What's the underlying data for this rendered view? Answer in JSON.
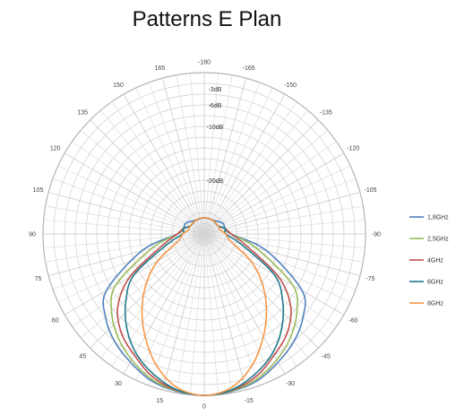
{
  "chart_data": {
    "type": "polar-line",
    "title": "Patterns E Plan",
    "angle_labels": [
      {
        "angle": 0,
        "label": "0"
      },
      {
        "angle": 15,
        "label": "15"
      },
      {
        "angle": 30,
        "label": "30"
      },
      {
        "angle": 45,
        "label": "45"
      },
      {
        "angle": 60,
        "label": "60"
      },
      {
        "angle": 75,
        "label": "75"
      },
      {
        "angle": 90,
        "label": "90"
      },
      {
        "angle": 105,
        "label": "105"
      },
      {
        "angle": 120,
        "label": "120"
      },
      {
        "angle": 135,
        "label": "135"
      },
      {
        "angle": 150,
        "label": "150"
      },
      {
        "angle": 165,
        "label": "165"
      },
      {
        "angle": 180,
        "label": "-180"
      },
      {
        "angle": -165,
        "label": "-165"
      },
      {
        "angle": -150,
        "label": "-150"
      },
      {
        "angle": -135,
        "label": "-135"
      },
      {
        "angle": -120,
        "label": "-120"
      },
      {
        "angle": -105,
        "label": "-105"
      },
      {
        "angle": -90,
        "label": "-90"
      },
      {
        "angle": -75,
        "label": "-75"
      },
      {
        "angle": -60,
        "label": "-60"
      },
      {
        "angle": -45,
        "label": "-45"
      },
      {
        "angle": -30,
        "label": "-30"
      },
      {
        "angle": -15,
        "label": "-15"
      }
    ],
    "radial_axis": {
      "min": -30,
      "max": 0,
      "unit": "dB"
    },
    "ring_labels": [
      {
        "value": -3,
        "label": "-3dB"
      },
      {
        "value": -6,
        "label": "-6dB"
      },
      {
        "value": -10,
        "label": "-10dB"
      },
      {
        "value": -20,
        "label": "-20dB"
      }
    ],
    "grid": true,
    "legend_position": "right",
    "series": [
      {
        "name": "1,8GHz",
        "color": "#4f81bd",
        "points": [
          [
            -180,
            -27
          ],
          [
            -150,
            -27
          ],
          [
            -120,
            -26
          ],
          [
            -105,
            -26
          ],
          [
            -90,
            -25
          ],
          [
            -75,
            -18
          ],
          [
            -60,
            -9
          ],
          [
            -50,
            -6
          ],
          [
            -40,
            -4
          ],
          [
            -30,
            -2.5
          ],
          [
            -20,
            -1
          ],
          [
            -10,
            -0.3
          ],
          [
            0,
            0
          ],
          [
            10,
            -0.3
          ],
          [
            20,
            -1
          ],
          [
            30,
            -2.5
          ],
          [
            40,
            -4
          ],
          [
            50,
            -6
          ],
          [
            60,
            -9
          ],
          [
            75,
            -18
          ],
          [
            90,
            -25
          ],
          [
            105,
            -26
          ],
          [
            120,
            -26
          ],
          [
            150,
            -27
          ],
          [
            180,
            -27
          ]
        ]
      },
      {
        "name": "2,5GHz",
        "color": "#9bbb59",
        "points": [
          [
            -180,
            -27
          ],
          [
            -150,
            -27
          ],
          [
            -120,
            -27
          ],
          [
            -105,
            -26
          ],
          [
            -90,
            -25
          ],
          [
            -75,
            -20
          ],
          [
            -60,
            -11
          ],
          [
            -50,
            -7.5
          ],
          [
            -40,
            -5
          ],
          [
            -30,
            -3
          ],
          [
            -20,
            -1.3
          ],
          [
            -10,
            -0.4
          ],
          [
            0,
            0
          ],
          [
            10,
            -0.4
          ],
          [
            20,
            -1.3
          ],
          [
            30,
            -3
          ],
          [
            40,
            -5
          ],
          [
            50,
            -7.5
          ],
          [
            60,
            -11
          ],
          [
            75,
            -20
          ],
          [
            90,
            -25
          ],
          [
            105,
            -26
          ],
          [
            120,
            -27
          ],
          [
            150,
            -27
          ],
          [
            180,
            -27
          ]
        ]
      },
      {
        "name": "4GHz",
        "color": "#c0504d",
        "points": [
          [
            -180,
            -27
          ],
          [
            -150,
            -27
          ],
          [
            -120,
            -27
          ],
          [
            -105,
            -26
          ],
          [
            -90,
            -25
          ],
          [
            -75,
            -22
          ],
          [
            -60,
            -14
          ],
          [
            -50,
            -9
          ],
          [
            -40,
            -6
          ],
          [
            -30,
            -4
          ],
          [
            -20,
            -1.8
          ],
          [
            -10,
            -0.5
          ],
          [
            0,
            0
          ],
          [
            10,
            -0.5
          ],
          [
            20,
            -1.8
          ],
          [
            30,
            -4
          ],
          [
            40,
            -6
          ],
          [
            50,
            -9
          ],
          [
            60,
            -14
          ],
          [
            75,
            -22
          ],
          [
            90,
            -25
          ],
          [
            105,
            -26
          ],
          [
            120,
            -27
          ],
          [
            150,
            -27
          ],
          [
            180,
            -27
          ]
        ]
      },
      {
        "name": "6GHz",
        "color": "#1f7a8c",
        "points": [
          [
            -180,
            -27
          ],
          [
            -150,
            -27
          ],
          [
            -120,
            -27
          ],
          [
            -105,
            -26
          ],
          [
            -90,
            -26
          ],
          [
            -75,
            -23
          ],
          [
            -60,
            -15
          ],
          [
            -50,
            -11
          ],
          [
            -40,
            -7.5
          ],
          [
            -30,
            -4.5
          ],
          [
            -20,
            -2.3
          ],
          [
            -10,
            -0.6
          ],
          [
            0,
            0
          ],
          [
            10,
            -0.6
          ],
          [
            20,
            -2.3
          ],
          [
            30,
            -4.5
          ],
          [
            40,
            -7.5
          ],
          [
            50,
            -11
          ],
          [
            60,
            -15
          ],
          [
            75,
            -23
          ],
          [
            90,
            -26
          ],
          [
            105,
            -26
          ],
          [
            120,
            -27
          ],
          [
            150,
            -27
          ],
          [
            180,
            -27
          ]
        ]
      },
      {
        "name": "8GHz",
        "color": "#f79646",
        "points": [
          [
            -180,
            -27
          ],
          [
            -150,
            -27
          ],
          [
            -120,
            -27
          ],
          [
            -105,
            -27
          ],
          [
            -90,
            -26
          ],
          [
            -75,
            -25
          ],
          [
            -60,
            -20
          ],
          [
            -50,
            -16
          ],
          [
            -40,
            -12
          ],
          [
            -30,
            -8
          ],
          [
            -20,
            -4
          ],
          [
            -10,
            -1
          ],
          [
            0,
            0
          ],
          [
            10,
            -1
          ],
          [
            20,
            -4
          ],
          [
            30,
            -8
          ],
          [
            40,
            -12
          ],
          [
            50,
            -16
          ],
          [
            60,
            -20
          ],
          [
            75,
            -25
          ],
          [
            90,
            -26
          ],
          [
            105,
            -27
          ],
          [
            120,
            -27
          ],
          [
            150,
            -27
          ],
          [
            180,
            -27
          ]
        ]
      }
    ]
  }
}
